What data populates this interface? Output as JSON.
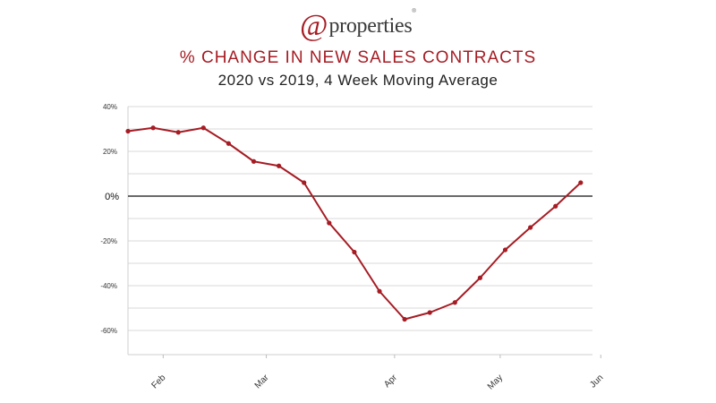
{
  "logo": {
    "at": "@",
    "name": "properties",
    "tm": "®"
  },
  "chart_data": {
    "type": "line",
    "title": "% CHANGE IN NEW SALES CONTRACTS",
    "subtitle": "2020 vs 2019, 4 Week Moving Average",
    "xlabel": "",
    "ylabel": "",
    "ylim": [
      -70,
      40
    ],
    "y_ticks": [
      {
        "value": 40,
        "label": "40%"
      },
      {
        "value": 20,
        "label": "20%"
      },
      {
        "value": 0,
        "label": "0%"
      },
      {
        "value": -20,
        "label": "-20%"
      },
      {
        "value": -40,
        "label": "-40%"
      },
      {
        "value": -60,
        "label": "-60%"
      }
    ],
    "gridlines": [
      30,
      10,
      -10,
      -30,
      -50
    ],
    "zero_line": 0,
    "x_ticks": [
      {
        "index": 1.4,
        "label": "Feb"
      },
      {
        "index": 5.5,
        "label": "Mar"
      },
      {
        "index": 10.6,
        "label": "Apr"
      },
      {
        "index": 14.8,
        "label": "May"
      },
      {
        "index": 18.8,
        "label": "Jun"
      }
    ],
    "series": [
      {
        "color": "#a61c24",
        "values": [
          29,
          30.5,
          28.5,
          30.5,
          23.5,
          15.5,
          13.5,
          6,
          -12,
          -25,
          -42.5,
          -55,
          -52,
          -47.5,
          -36.5,
          -24,
          -14,
          -4.5,
          6
        ]
      }
    ],
    "grid": true,
    "legend": "none"
  }
}
